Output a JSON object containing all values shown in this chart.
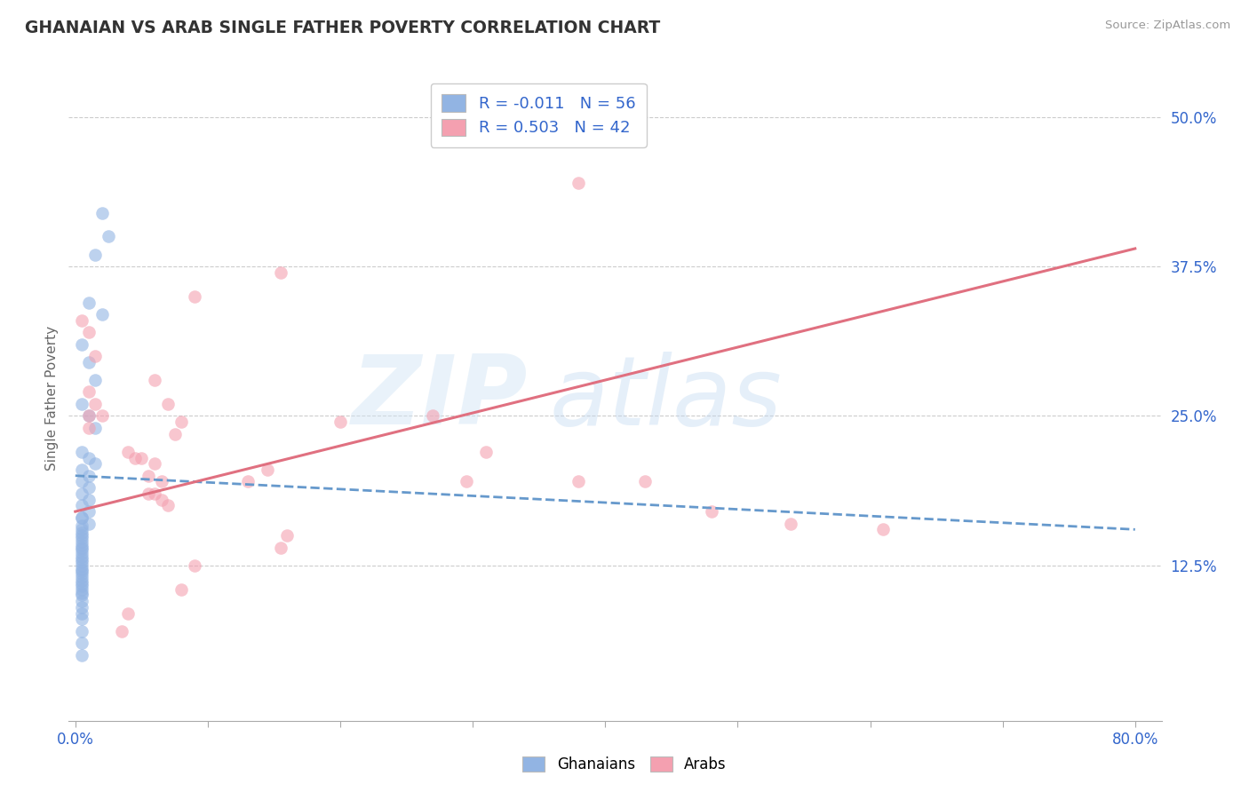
{
  "title": "GHANAIAN VS ARAB SINGLE FATHER POVERTY CORRELATION CHART",
  "source": "Source: ZipAtlas.com",
  "ylabel": "Single Father Poverty",
  "xlim": [
    -0.005,
    0.82
  ],
  "ylim": [
    -0.005,
    0.535
  ],
  "xticks": [
    0.0,
    0.1,
    0.2,
    0.3,
    0.4,
    0.5,
    0.6,
    0.7,
    0.8
  ],
  "xticklabels": [
    "0.0%",
    "",
    "",
    "",
    "",
    "",
    "",
    "",
    "80.0%"
  ],
  "yticks": [
    0.125,
    0.25,
    0.375,
    0.5
  ],
  "yticklabels": [
    "12.5%",
    "25.0%",
    "37.5%",
    "50.0%"
  ],
  "legend_R_blue": "R = -0.011",
  "legend_N_blue": "N = 56",
  "legend_R_pink": "R = 0.503",
  "legend_N_pink": "N = 42",
  "blue_color": "#92B4E3",
  "pink_color": "#F4A0B0",
  "trendline_blue_color": "#6699CC",
  "trendline_pink_color": "#E07080",
  "ghanaian_x": [
    0.02,
    0.025,
    0.015,
    0.01,
    0.02,
    0.005,
    0.01,
    0.015,
    0.005,
    0.01,
    0.015,
    0.005,
    0.01,
    0.015,
    0.005,
    0.01,
    0.005,
    0.01,
    0.005,
    0.01,
    0.005,
    0.01,
    0.005,
    0.005,
    0.01,
    0.005,
    0.005,
    0.005,
    0.005,
    0.005,
    0.005,
    0.005,
    0.005,
    0.005,
    0.005,
    0.005,
    0.005,
    0.005,
    0.005,
    0.005,
    0.005,
    0.005,
    0.005,
    0.005,
    0.005,
    0.005,
    0.005,
    0.005,
    0.005,
    0.005,
    0.005,
    0.005,
    0.005,
    0.005,
    0.005,
    0.005
  ],
  "ghanaian_y": [
    0.42,
    0.4,
    0.385,
    0.345,
    0.335,
    0.31,
    0.295,
    0.28,
    0.26,
    0.25,
    0.24,
    0.22,
    0.215,
    0.21,
    0.205,
    0.2,
    0.195,
    0.19,
    0.185,
    0.18,
    0.175,
    0.17,
    0.165,
    0.165,
    0.16,
    0.158,
    0.155,
    0.152,
    0.15,
    0.148,
    0.145,
    0.142,
    0.14,
    0.138,
    0.135,
    0.132,
    0.13,
    0.128,
    0.125,
    0.122,
    0.12,
    0.118,
    0.115,
    0.112,
    0.11,
    0.108,
    0.105,
    0.102,
    0.1,
    0.095,
    0.09,
    0.085,
    0.08,
    0.07,
    0.06,
    0.05
  ],
  "arab_x": [
    0.38,
    0.01,
    0.155,
    0.09,
    0.005,
    0.01,
    0.015,
    0.01,
    0.015,
    0.01,
    0.02,
    0.06,
    0.07,
    0.08,
    0.075,
    0.04,
    0.045,
    0.05,
    0.06,
    0.055,
    0.065,
    0.06,
    0.055,
    0.065,
    0.07,
    0.13,
    0.145,
    0.2,
    0.27,
    0.31,
    0.295,
    0.38,
    0.43,
    0.48,
    0.54,
    0.61,
    0.16,
    0.155,
    0.09,
    0.08,
    0.04,
    0.035
  ],
  "arab_y": [
    0.445,
    0.24,
    0.37,
    0.35,
    0.33,
    0.32,
    0.3,
    0.27,
    0.26,
    0.25,
    0.25,
    0.28,
    0.26,
    0.245,
    0.235,
    0.22,
    0.215,
    0.215,
    0.21,
    0.2,
    0.195,
    0.185,
    0.185,
    0.18,
    0.175,
    0.195,
    0.205,
    0.245,
    0.25,
    0.22,
    0.195,
    0.195,
    0.195,
    0.17,
    0.16,
    0.155,
    0.15,
    0.14,
    0.125,
    0.105,
    0.085,
    0.07
  ],
  "blue_trendline_x": [
    0.0,
    0.8
  ],
  "blue_trendline_y": [
    0.2,
    0.155
  ],
  "pink_trendline_x": [
    0.0,
    0.8
  ],
  "pink_trendline_y": [
    0.17,
    0.39
  ]
}
